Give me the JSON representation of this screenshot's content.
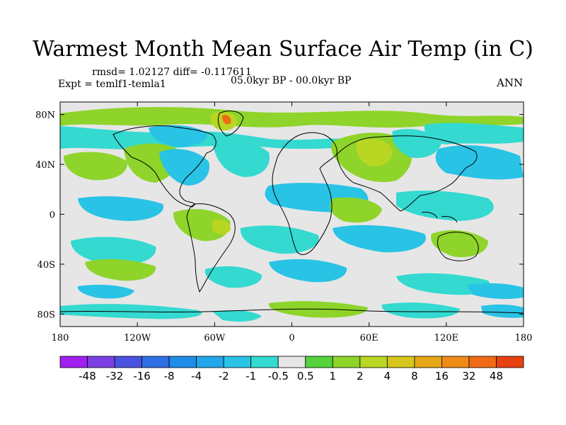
{
  "title": "Warmest Month Mean Surface Air Temp (in C)",
  "stats": "rmsd= 1.02127 diff= -0.117611",
  "experiment": "Expt = temlf1-temla1",
  "period": "05.0kyr BP - 00.0kyr BP",
  "season": "ANN",
  "map": {
    "projection": "cylindrical-equidistant",
    "lon_range": [
      -180,
      180
    ],
    "lat_range": [
      -90,
      90
    ],
    "lon_ticks": [
      {
        "value": -180,
        "label": "180"
      },
      {
        "value": -120,
        "label": "120W"
      },
      {
        "value": -60,
        "label": "60W"
      },
      {
        "value": 0,
        "label": "0"
      },
      {
        "value": 60,
        "label": "60E"
      },
      {
        "value": 120,
        "label": "120E"
      },
      {
        "value": 180,
        "label": "180"
      }
    ],
    "lat_ticks": [
      {
        "value": 80,
        "label": "80N"
      },
      {
        "value": 40,
        "label": "40N"
      },
      {
        "value": 0,
        "label": "0"
      },
      {
        "value": -40,
        "label": "40S"
      },
      {
        "value": -80,
        "label": "80S"
      }
    ],
    "background_color": "#e6e6e6"
  },
  "colorbar": {
    "colors": [
      "#a020f0",
      "#7b3fe4",
      "#4a52e0",
      "#2f6fe6",
      "#1f8ce8",
      "#22a8ea",
      "#29c3e6",
      "#34d9d0",
      "#e6e6e6",
      "#55d23c",
      "#8ed42a",
      "#b8d622",
      "#d6c51c",
      "#e6a818",
      "#ee8a16",
      "#f06a14",
      "#e84010"
    ],
    "labels": [
      "-48",
      "-32",
      "-16",
      "-8",
      "-4",
      "-2",
      "-1",
      "-0.5",
      "0.5",
      "1",
      "2",
      "4",
      "8",
      "16",
      "32",
      "48"
    ]
  }
}
